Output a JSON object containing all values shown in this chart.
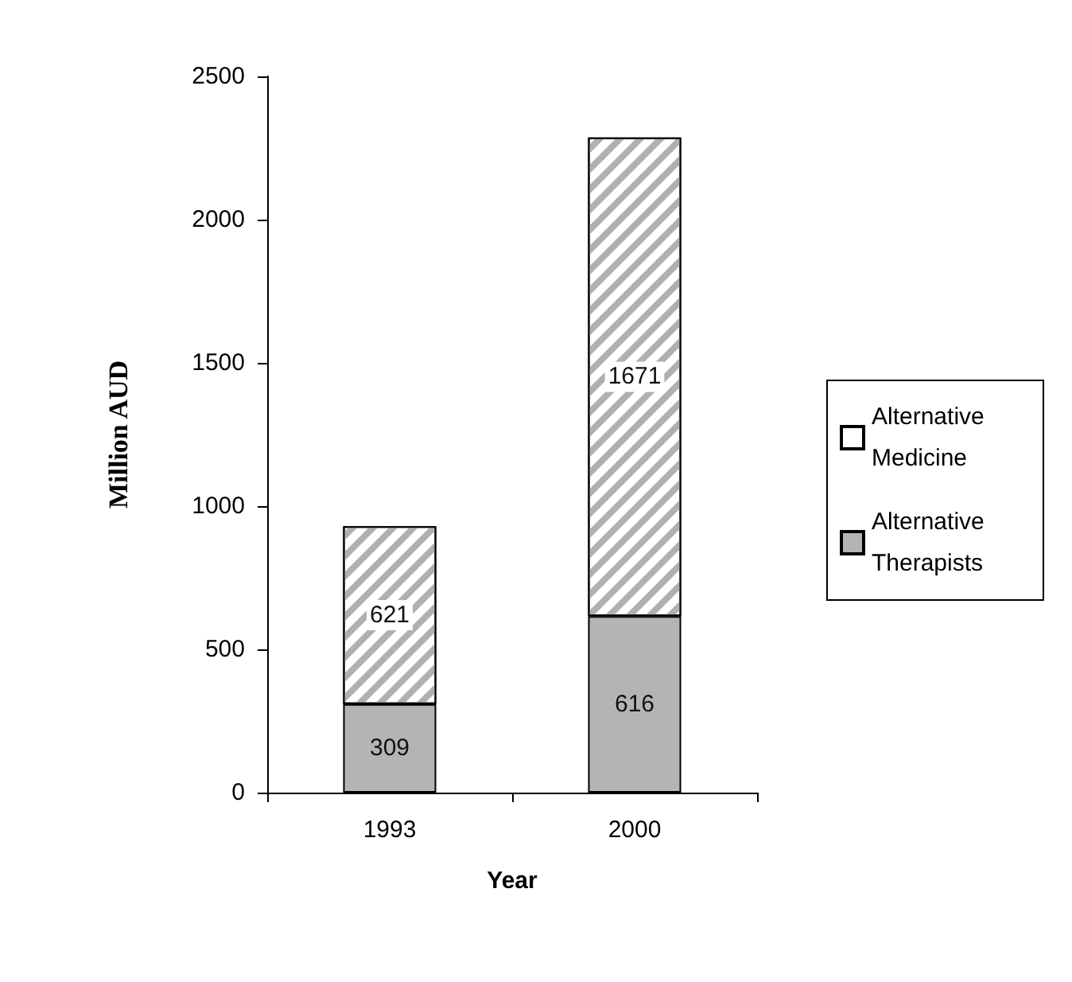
{
  "chart_data": {
    "type": "bar",
    "stacked": true,
    "xlabel": "Year",
    "ylabel": "Million AUD",
    "categories": [
      "1993",
      "2000"
    ],
    "series": [
      {
        "name": "Alternative Therapists",
        "color": "#b4b4b4",
        "values": [
          309,
          616
        ]
      },
      {
        "name": "Alternative Medicine",
        "color": "#ffffff",
        "values": [
          621,
          1671
        ]
      }
    ],
    "ylim": [
      0,
      2500
    ],
    "yticks": [
      0,
      500,
      1000,
      1500,
      2000,
      2500
    ],
    "grid": false,
    "legend": "right",
    "data_labels": true
  }
}
